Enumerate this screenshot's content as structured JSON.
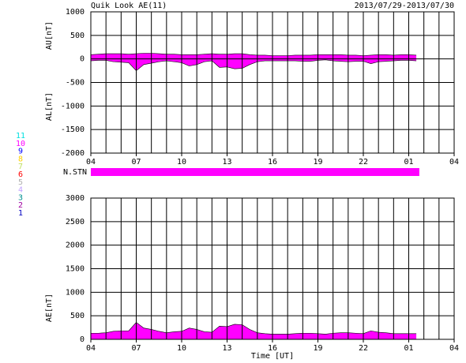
{
  "chart_data": [
    {
      "type": "area",
      "title": "Quik Look AE(11)",
      "subtitle": "2013/07/29-2013/07/30",
      "y_labels": [
        "AU[nT]",
        "AL[nT]"
      ],
      "x": [
        4,
        4.5,
        5,
        5.5,
        6,
        6.5,
        7,
        7.5,
        8,
        8.5,
        9,
        9.5,
        10,
        10.5,
        11,
        11.5,
        12,
        12.5,
        13,
        13.5,
        14,
        14.5,
        15,
        15.5,
        16,
        16.5,
        17,
        17.5,
        18,
        18.5,
        19,
        19.5,
        20,
        20.5,
        21,
        21.5,
        22,
        22.5,
        23,
        23.5,
        24,
        24.5,
        25,
        25.5
      ],
      "series": [
        {
          "name": "AU",
          "color": "#ff00ff",
          "values": [
            90,
            100,
            110,
            110,
            110,
            100,
            110,
            120,
            120,
            110,
            100,
            100,
            90,
            90,
            90,
            100,
            110,
            100,
            100,
            110,
            110,
            90,
            80,
            80,
            70,
            70,
            70,
            80,
            80,
            80,
            90,
            90,
            90,
            90,
            80,
            80,
            70,
            80,
            90,
            90,
            80,
            90,
            90,
            80
          ]
        },
        {
          "name": "AL",
          "color": "#ff00ff",
          "values": [
            -40,
            -30,
            -30,
            -60,
            -70,
            -80,
            -250,
            -120,
            -90,
            -60,
            -40,
            -60,
            -80,
            -150,
            -120,
            -60,
            -40,
            -180,
            -170,
            -210,
            -200,
            -120,
            -60,
            -40,
            -40,
            -40,
            -40,
            -40,
            -50,
            -50,
            -30,
            -20,
            -40,
            -50,
            -60,
            -50,
            -50,
            -100,
            -60,
            -50,
            -40,
            -30,
            -30,
            -40
          ]
        }
      ],
      "xlim": [
        4,
        28
      ],
      "xticks": [
        {
          "value": 4,
          "label": "04"
        },
        {
          "value": 7,
          "label": "07"
        },
        10,
        13,
        16,
        19,
        22,
        {
          "value": 25,
          "label": "01"
        },
        {
          "value": 28,
          "label": "04"
        }
      ],
      "xgrid": [
        4,
        5,
        6,
        7,
        8,
        9,
        10,
        11,
        12,
        13,
        14,
        15,
        16,
        17,
        18,
        19,
        20,
        21,
        22,
        23,
        24,
        25,
        26,
        27,
        28
      ],
      "ylim": [
        -2000,
        1000
      ],
      "yticks": [
        -2000,
        -1500,
        -1000,
        -500,
        0,
        500,
        1000
      ]
    },
    {
      "type": "area",
      "y_labels": [
        "AE[nT]"
      ],
      "xlabel": "Time [UT]",
      "x": [
        4,
        4.5,
        5,
        5.5,
        6,
        6.5,
        7,
        7.5,
        8,
        8.5,
        9,
        9.5,
        10,
        10.5,
        11,
        11.5,
        12,
        12.5,
        13,
        13.5,
        14,
        14.5,
        15,
        15.5,
        16,
        16.5,
        17,
        17.5,
        18,
        18.5,
        19,
        19.5,
        20,
        20.5,
        21,
        21.5,
        22,
        22.5,
        23,
        23.5,
        24,
        24.5,
        25,
        25.5
      ],
      "series": [
        {
          "name": "AE",
          "color": "#ff00ff",
          "values": [
            130,
            130,
            140,
            170,
            180,
            180,
            360,
            240,
            210,
            170,
            140,
            160,
            170,
            240,
            210,
            160,
            150,
            280,
            270,
            320,
            310,
            210,
            140,
            120,
            110,
            110,
            110,
            120,
            130,
            130,
            120,
            110,
            130,
            140,
            140,
            130,
            120,
            180,
            150,
            140,
            120,
            120,
            120,
            120
          ]
        }
      ],
      "xlim": [
        4,
        28
      ],
      "xticks": [
        {
          "value": 4,
          "label": "04"
        },
        {
          "value": 7,
          "label": "07"
        },
        10,
        13,
        16,
        19,
        22,
        {
          "value": 25,
          "label": "01"
        },
        {
          "value": 28,
          "label": "04"
        }
      ],
      "xgrid": [
        4,
        5,
        6,
        7,
        8,
        9,
        10,
        11,
        12,
        13,
        14,
        15,
        16,
        17,
        18,
        19,
        20,
        21,
        22,
        23,
        24,
        25,
        26,
        27,
        28
      ],
      "ylim": [
        0,
        3000
      ],
      "yticks": [
        0,
        500,
        1000,
        1500,
        2000,
        2500,
        3000
      ]
    }
  ],
  "n_stn": {
    "label": "N.STN",
    "color": "#ff00ff",
    "x": [
      4,
      25.7
    ]
  },
  "stations": [
    {
      "label": "11",
      "color": "#00e0e0"
    },
    {
      "label": "10",
      "color": "#ff00ff"
    },
    {
      "label": "9",
      "color": "#0000ff"
    },
    {
      "label": "8",
      "color": "#ffd000"
    },
    {
      "label": "7",
      "color": "#c0e060"
    },
    {
      "label": "6",
      "color": "#ff0000"
    },
    {
      "label": "5",
      "color": "#b0b0b0"
    },
    {
      "label": "4",
      "color": "#c0a0ff"
    },
    {
      "label": "3",
      "color": "#009090"
    },
    {
      "label": "2",
      "color": "#a000a0"
    },
    {
      "label": "1",
      "color": "#0000c0"
    }
  ]
}
